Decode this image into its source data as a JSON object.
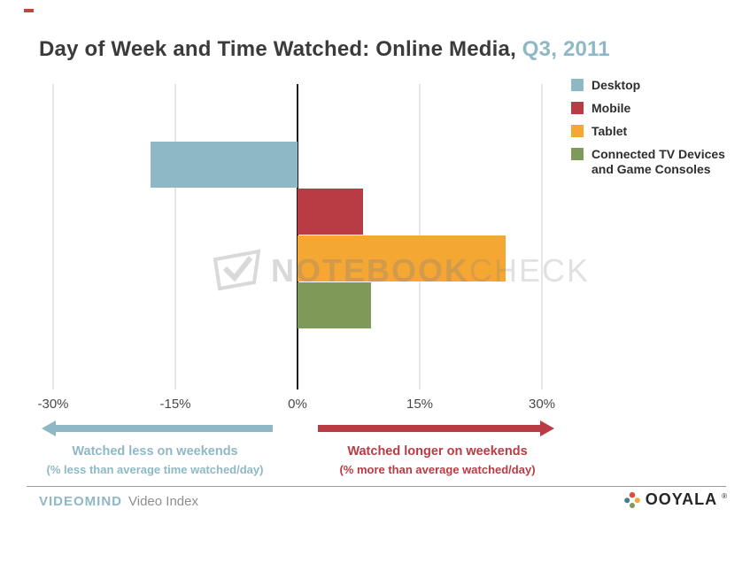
{
  "title": {
    "main": "Day of Week and Time Watched: Online Media,",
    "highlight": " Q3, 2011"
  },
  "legend": [
    {
      "label": "Desktop",
      "color": "#8fb8c6"
    },
    {
      "label": "Mobile",
      "color": "#b93b43"
    },
    {
      "label": "Tablet",
      "color": "#f5a733"
    },
    {
      "label": "Connected TV Devices\nand Game Consoles",
      "color": "#7f9a58"
    }
  ],
  "chart_data": {
    "type": "bar",
    "orientation": "horizontal",
    "title": "Day of Week and Time Watched: Online Media, Q3, 2011",
    "categories": [
      "Desktop",
      "Mobile",
      "Tablet",
      "Connected TV Devices and Game Consoles"
    ],
    "values": [
      -18,
      8,
      25.5,
      9
    ],
    "unit": "%",
    "colors": [
      "#8fb8c6",
      "#b93b43",
      "#f5a733",
      "#7f9a58"
    ],
    "xlim": [
      -30,
      30
    ],
    "xticks": [
      {
        "value": -30,
        "label": "-30%"
      },
      {
        "value": -15,
        "label": "-15%"
      },
      {
        "value": 0,
        "label": "0%"
      },
      {
        "value": 15,
        "label": "15%"
      },
      {
        "value": 30,
        "label": "30%"
      }
    ],
    "grid": "vertical",
    "legend_position": "top-right"
  },
  "annotations": {
    "left": {
      "line1": "Watched less on weekends",
      "line2": "(% less than average time watched/day)",
      "color": "#8fb8c6"
    },
    "right": {
      "line1": "Watched longer on weekends",
      "line2": "(% more than average watched/day)",
      "color": "#b93b43"
    }
  },
  "watermark": {
    "part1": "NOTEBOOK",
    "part2": "CHECK"
  },
  "footer": {
    "brand": "VIDEOMIND",
    "product": "Video Index",
    "logo": "OOYALA",
    "mark": "®"
  },
  "colors": {
    "accent_teal": "#8fb8c6",
    "accent_red": "#b93b43",
    "grid": "#cccccc",
    "zero_line": "#1a1a1a",
    "title_text": "#3b3b3d"
  }
}
